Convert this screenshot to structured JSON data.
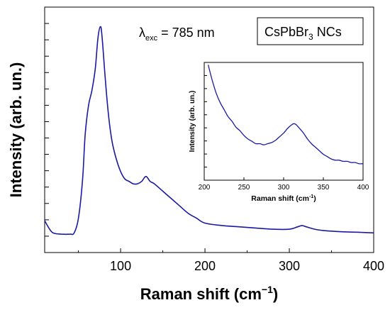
{
  "chart_data": [
    {
      "type": "line",
      "xlabel": "Raman shift (cm",
      "xlabel_sup": "−1",
      "xlabel_end": ")",
      "ylabel": "Intensity (arb. un.)",
      "xlim": [
        10,
        400
      ],
      "ylim": [
        0,
        100
      ],
      "x_ticks": [
        100,
        200,
        300,
        400
      ],
      "y_tick_labels": "none",
      "annotation": {
        "symbol": "λ",
        "sub": "exc",
        "text": " = 785 nm"
      },
      "legend_box": {
        "main": "CsPbBr",
        "sub": "3",
        "suffix": " NCs"
      },
      "line_color": "#1a1aa0",
      "series": [
        {
          "x": [
            10,
            15,
            20,
            30,
            40,
            45,
            50,
            55,
            58,
            62,
            66,
            70,
            73,
            76,
            78,
            82,
            86,
            90,
            95,
            100,
            105,
            110,
            115,
            120,
            125,
            130,
            135,
            140,
            150,
            160,
            170,
            180,
            190,
            200,
            220,
            240,
            260,
            280,
            300,
            310,
            315,
            320,
            330,
            340,
            360,
            380,
            400
          ],
          "y": [
            13,
            10,
            8,
            7.5,
            7.5,
            8,
            14,
            30,
            48,
            60,
            66,
            75,
            87,
            92,
            88,
            70,
            55,
            45,
            38,
            33,
            30,
            29,
            28,
            28,
            29,
            31,
            29,
            28,
            25,
            22,
            19,
            16,
            14,
            12,
            11,
            10.5,
            10,
            9.5,
            9.5,
            10.5,
            11,
            10.5,
            9.5,
            9,
            8.5,
            8.3,
            8
          ]
        }
      ]
    },
    {
      "type": "line",
      "inset": true,
      "xlabel": "Raman shift (cm",
      "xlabel_sup": "-1",
      "xlabel_end": ")",
      "ylabel": "Intensity (arb. un.)",
      "xlim": [
        200,
        400
      ],
      "ylim": [
        0,
        100
      ],
      "x_ticks": [
        200,
        250,
        300,
        350,
        400
      ],
      "line_color": "#1a1aa0",
      "series": [
        {
          "x": [
            205,
            210,
            215,
            220,
            225,
            230,
            235,
            240,
            245,
            250,
            255,
            260,
            265,
            270,
            275,
            280,
            285,
            290,
            295,
            300,
            305,
            310,
            313,
            316,
            320,
            325,
            330,
            335,
            340,
            345,
            350,
            355,
            360,
            365,
            370,
            375,
            380,
            385,
            390,
            395,
            400
          ],
          "y": [
            98,
            85,
            74,
            66,
            60,
            54,
            50,
            45,
            42,
            38,
            35,
            33,
            31,
            31,
            30,
            31,
            32,
            34,
            37,
            40,
            44,
            47,
            48,
            47,
            44,
            40,
            35,
            31,
            28,
            25,
            22,
            20,
            18,
            17,
            17,
            16,
            16,
            15,
            15,
            14,
            14
          ]
        }
      ]
    }
  ]
}
